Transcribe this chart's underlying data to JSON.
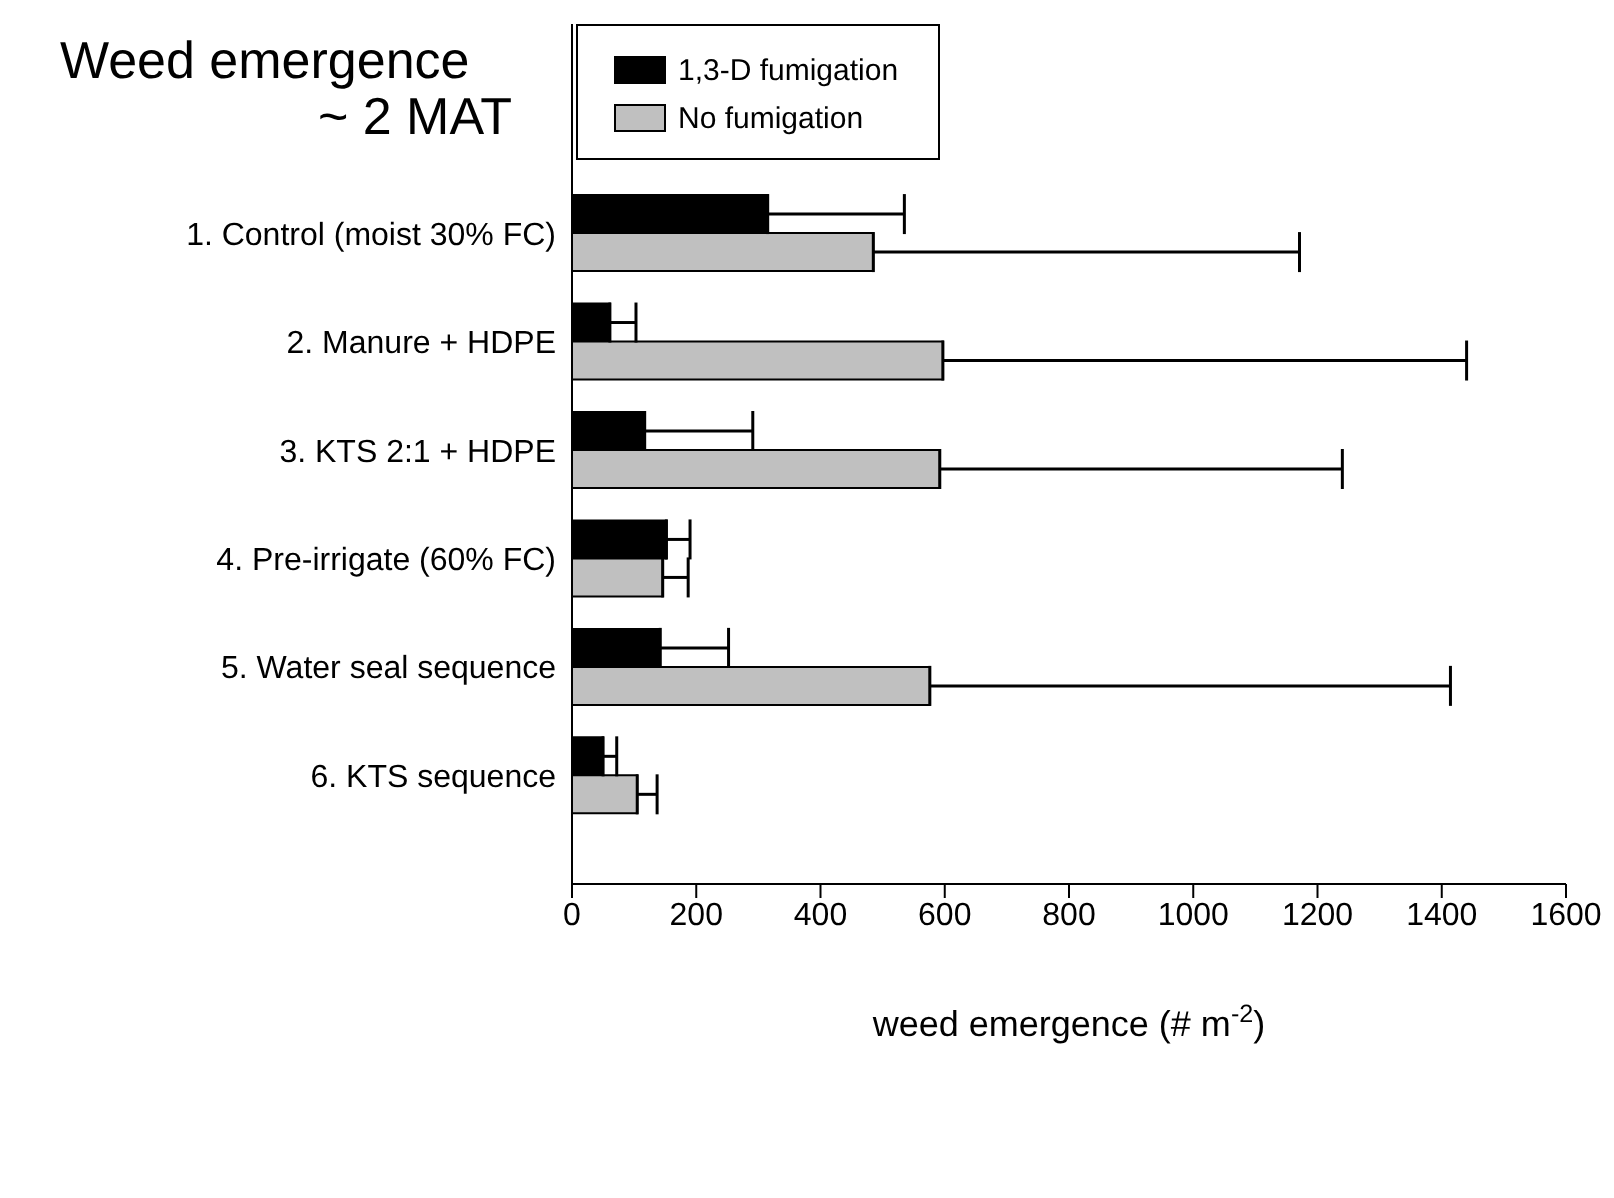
{
  "chart_data": {
    "type": "bar",
    "orientation": "horizontal",
    "title": "Weed emergence",
    "subtitle": "~ 2 MAT",
    "xlabel": "weed emergence (# m$^{-2}$)",
    "categories": [
      "1. Control (moist 30% FC)",
      "2. Manure + HDPE",
      "3. KTS 2:1 + HDPE",
      "4. Pre-irrigate (60% FC)",
      "5. Water seal sequence",
      "6. KTS sequence"
    ],
    "series": [
      {
        "name": "1,3-D fumigation",
        "color": "#000000",
        "values": [
          315,
          61,
          117,
          152,
          142,
          50
        ],
        "errors": [
          [
            315,
            535
          ],
          [
            61,
            103
          ],
          [
            117,
            291
          ],
          [
            152,
            190
          ],
          [
            142,
            252
          ],
          [
            50,
            72
          ]
        ]
      },
      {
        "name": "No fumigation",
        "color": "#c0c0c0",
        "values": [
          485,
          597,
          592,
          146,
          576,
          105
        ],
        "errors": [
          [
            485,
            1171
          ],
          [
            597,
            1440
          ],
          [
            592,
            1240
          ],
          [
            146,
            187
          ],
          [
            576,
            1414
          ],
          [
            105,
            137
          ]
        ]
      }
    ],
    "xlim": [
      0,
      1600
    ],
    "xticks": [
      0,
      200,
      400,
      600,
      800,
      1000,
      1200,
      1400,
      1600
    ],
    "legend": "top left"
  }
}
